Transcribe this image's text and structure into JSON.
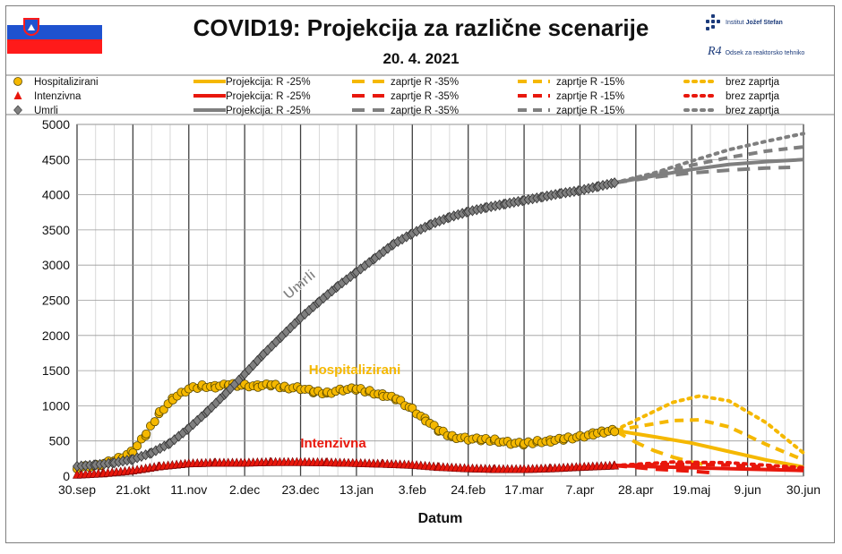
{
  "header": {
    "title": "COVID19: Projekcija za različne scenarije",
    "date": "20. 4. 2021",
    "flag_icon": "slovenia-flag-icon",
    "logo_ijs": {
      "prefix": "Institut ",
      "name": "Jožef Stefan"
    },
    "logo_r4": {
      "mark": "R4",
      "text": "Odsek za reaktorsko tehniko"
    }
  },
  "legend": {
    "rows": [
      {
        "label": "Hospitalizirani",
        "color": "#f5b800",
        "marker": "circle",
        "items": [
          "Projekcija: R -25%",
          "zaprtje R -35%",
          "zaprtje R -15%",
          "brez zaprtja"
        ]
      },
      {
        "label": "Intenzivna",
        "color": "#e8170c",
        "marker": "triangle",
        "items": [
          "Projekcija: R -25%",
          "zaprtje R -35%",
          "zaprtje R -15%",
          "brez zaprtja"
        ]
      },
      {
        "label": "Umrli",
        "color": "#7f7f7f",
        "marker": "diamond",
        "items": [
          "Projekcija: R -25%",
          "zaprtje R -35%",
          "zaprtje R -15%",
          "brez zaprtja"
        ]
      }
    ]
  },
  "chart_data": {
    "type": "line",
    "title": "COVID19: Projekcija za različne scenarije",
    "subtitle": "20. 4. 2021",
    "xlabel": "Datum",
    "ylabel": "",
    "ylim": [
      0,
      5000
    ],
    "yticks": [
      0,
      500,
      1000,
      1500,
      2000,
      2500,
      3000,
      3500,
      4000,
      4500,
      5000
    ],
    "x_tick_labels": [
      "30.sep",
      "21.okt",
      "11.nov",
      "2.dec",
      "23.dec",
      "13.jan",
      "3.feb",
      "24.feb",
      "17.mar",
      "7.apr",
      "28.apr",
      "19.maj",
      "9.jun",
      "30.jun"
    ],
    "x_range": [
      "2020-09-30",
      "2021-06-30"
    ],
    "grid": true,
    "legend_position": "top",
    "annotations": [
      {
        "text": "Umrli",
        "color": "#7f7f7f"
      },
      {
        "text": "Hospitalizirani",
        "color": "#f5b800"
      },
      {
        "text": "Intenzivna",
        "color": "#e8170c"
      }
    ],
    "observed_series": [
      {
        "name": "Hospitalizirani",
        "color": "#f5b800",
        "marker": "circle",
        "x": [
          "2020-09-30",
          "2020-10-07",
          "2020-10-14",
          "2020-10-21",
          "2020-10-26",
          "2020-10-31",
          "2020-11-05",
          "2020-11-11",
          "2020-11-16",
          "2020-11-21",
          "2020-11-26",
          "2020-12-02",
          "2020-12-07",
          "2020-12-12",
          "2020-12-17",
          "2020-12-23",
          "2020-12-28",
          "2021-01-02",
          "2021-01-08",
          "2021-01-13",
          "2021-01-18",
          "2021-01-23",
          "2021-01-28",
          "2021-02-03",
          "2021-02-08",
          "2021-02-13",
          "2021-02-18",
          "2021-02-24",
          "2021-03-01",
          "2021-03-06",
          "2021-03-12",
          "2021-03-17",
          "2021-03-22",
          "2021-03-27",
          "2021-04-01",
          "2021-04-07",
          "2021-04-12",
          "2021-04-16",
          "2021-04-20"
        ],
        "y": [
          120,
          150,
          220,
          350,
          600,
          900,
          1100,
          1240,
          1280,
          1270,
          1300,
          1290,
          1280,
          1300,
          1260,
          1250,
          1200,
          1180,
          1230,
          1240,
          1200,
          1150,
          1100,
          950,
          800,
          650,
          560,
          530,
          520,
          510,
          470,
          460,
          490,
          500,
          530,
          560,
          600,
          630,
          650
        ]
      },
      {
        "name": "Intenzivna",
        "color": "#e8170c",
        "marker": "triangle",
        "x": [
          "2020-09-30",
          "2020-10-10",
          "2020-10-21",
          "2020-10-31",
          "2020-11-11",
          "2020-11-21",
          "2020-12-02",
          "2020-12-12",
          "2020-12-23",
          "2021-01-02",
          "2021-01-13",
          "2021-01-23",
          "2021-02-03",
          "2021-02-13",
          "2021-02-24",
          "2021-03-06",
          "2021-03-17",
          "2021-03-27",
          "2021-04-07",
          "2021-04-20"
        ],
        "y": [
          20,
          40,
          80,
          140,
          180,
          190,
          190,
          200,
          200,
          195,
          185,
          175,
          160,
          130,
          110,
          100,
          100,
          110,
          130,
          150
        ]
      },
      {
        "name": "Umrli",
        "color": "#7f7f7f",
        "marker": "diamond",
        "x": [
          "2020-09-30",
          "2020-10-07",
          "2020-10-14",
          "2020-10-21",
          "2020-10-28",
          "2020-11-04",
          "2020-11-11",
          "2020-11-18",
          "2020-11-25",
          "2020-12-02",
          "2020-12-09",
          "2020-12-16",
          "2020-12-23",
          "2020-12-30",
          "2021-01-06",
          "2021-01-13",
          "2021-01-20",
          "2021-01-27",
          "2021-02-03",
          "2021-02-10",
          "2021-02-17",
          "2021-02-24",
          "2021-03-03",
          "2021-03-10",
          "2021-03-17",
          "2021-03-24",
          "2021-03-31",
          "2021-04-07",
          "2021-04-14",
          "2021-04-20"
        ],
        "y": [
          140,
          160,
          190,
          240,
          330,
          470,
          680,
          920,
          1180,
          1450,
          1730,
          1990,
          2250,
          2480,
          2700,
          2900,
          3100,
          3300,
          3450,
          3580,
          3680,
          3760,
          3820,
          3870,
          3920,
          3970,
          4020,
          4060,
          4120,
          4170
        ]
      }
    ],
    "projection_series": [
      {
        "group": "Hospitalizirani",
        "name": "Projekcija: R -25%",
        "color": "#f5b800",
        "style": "solid",
        "x": [
          "2021-04-20",
          "2021-05-05",
          "2021-05-19",
          "2021-06-02",
          "2021-06-16",
          "2021-06-30"
        ],
        "y": [
          650,
          560,
          470,
          350,
          230,
          130
        ]
      },
      {
        "group": "Hospitalizirani",
        "name": "zaprtje R -35%",
        "color": "#f5b800",
        "style": "long-dash",
        "x": [
          "2021-04-20",
          "2021-04-28",
          "2021-05-05",
          "2021-05-12",
          "2021-05-19",
          "2021-05-26"
        ],
        "y": [
          650,
          480,
          360,
          270,
          200,
          150
        ]
      },
      {
        "group": "Hospitalizirani",
        "name": "zaprtje R -15%",
        "color": "#f5b800",
        "style": "dash",
        "x": [
          "2021-04-20",
          "2021-05-01",
          "2021-05-12",
          "2021-05-22",
          "2021-06-02",
          "2021-06-16",
          "2021-06-30"
        ],
        "y": [
          650,
          720,
          790,
          800,
          700,
          450,
          230
        ]
      },
      {
        "group": "Hospitalizirani",
        "name": "brez zaprtja",
        "color": "#f5b800",
        "style": "dot",
        "x": [
          "2021-04-20",
          "2021-05-01",
          "2021-05-12",
          "2021-05-22",
          "2021-06-02",
          "2021-06-16",
          "2021-06-30"
        ],
        "y": [
          650,
          850,
          1050,
          1140,
          1070,
          760,
          330
        ]
      },
      {
        "group": "Intenzivna",
        "name": "Projekcija: R -25%",
        "color": "#e8170c",
        "style": "solid",
        "x": [
          "2021-04-20",
          "2021-05-19",
          "2021-06-30"
        ],
        "y": [
          150,
          120,
          80
        ]
      },
      {
        "group": "Intenzivna",
        "name": "zaprtje R -35%",
        "color": "#e8170c",
        "style": "long-dash",
        "x": [
          "2021-04-20",
          "2021-05-05",
          "2021-05-19",
          "2021-05-26"
        ],
        "y": [
          150,
          100,
          70,
          50
        ]
      },
      {
        "group": "Intenzivna",
        "name": "zaprtje R -15%",
        "color": "#e8170c",
        "style": "dash",
        "x": [
          "2021-04-20",
          "2021-05-12",
          "2021-06-02",
          "2021-06-30"
        ],
        "y": [
          150,
          170,
          160,
          100
        ]
      },
      {
        "group": "Intenzivna",
        "name": "brez zaprtja",
        "color": "#e8170c",
        "style": "dot",
        "x": [
          "2021-04-20",
          "2021-05-12",
          "2021-06-02",
          "2021-06-30"
        ],
        "y": [
          150,
          200,
          190,
          120
        ]
      },
      {
        "group": "Umrli",
        "name": "Projekcija: R -25%",
        "color": "#7f7f7f",
        "style": "solid",
        "x": [
          "2021-04-20",
          "2021-05-05",
          "2021-05-19",
          "2021-06-02",
          "2021-06-16",
          "2021-06-30"
        ],
        "y": [
          4170,
          4270,
          4360,
          4430,
          4470,
          4500
        ]
      },
      {
        "group": "Umrli",
        "name": "zaprtje R -35%",
        "color": "#7f7f7f",
        "style": "long-dash",
        "x": [
          "2021-04-20",
          "2021-05-05",
          "2021-05-19",
          "2021-06-02",
          "2021-06-16",
          "2021-06-25"
        ],
        "y": [
          4170,
          4250,
          4310,
          4350,
          4380,
          4390
        ]
      },
      {
        "group": "Umrli",
        "name": "zaprtje R -15%",
        "color": "#7f7f7f",
        "style": "dash",
        "x": [
          "2021-04-20",
          "2021-05-05",
          "2021-05-19",
          "2021-06-02",
          "2021-06-16",
          "2021-06-30"
        ],
        "y": [
          4170,
          4290,
          4420,
          4530,
          4620,
          4680
        ]
      },
      {
        "group": "Umrli",
        "name": "brez zaprtja",
        "color": "#7f7f7f",
        "style": "dot",
        "x": [
          "2021-04-20",
          "2021-05-05",
          "2021-05-19",
          "2021-06-02",
          "2021-06-16",
          "2021-06-30"
        ],
        "y": [
          4170,
          4310,
          4480,
          4640,
          4760,
          4870
        ]
      }
    ]
  }
}
